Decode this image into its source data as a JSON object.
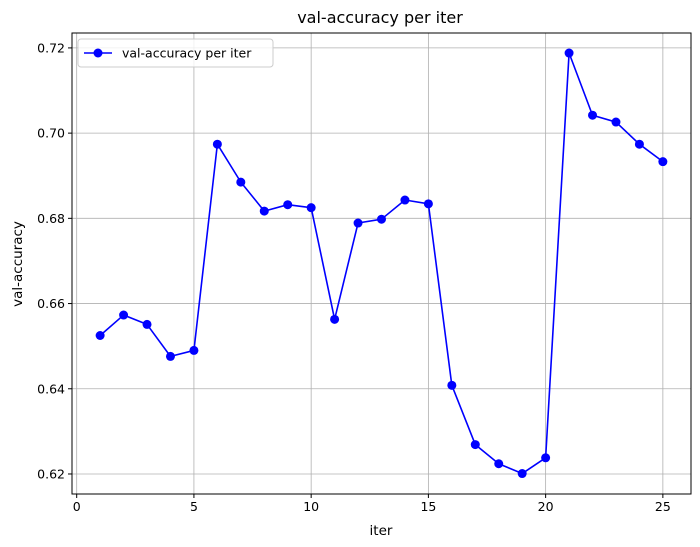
{
  "chart_data": {
    "type": "line",
    "title": "val-accuracy per iter",
    "xlabel": "iter",
    "ylabel": "val-accuracy",
    "xlim": [
      -0.2,
      26.2
    ],
    "ylim": [
      0.6153,
      0.7235
    ],
    "xticks": [
      0,
      5,
      10,
      15,
      20,
      25
    ],
    "yticks": [
      0.62,
      0.64,
      0.66,
      0.68,
      0.7,
      0.72
    ],
    "xtick_labels": [
      "0",
      "5",
      "10",
      "15",
      "20",
      "25"
    ],
    "ytick_labels": [
      "0.62",
      "0.64",
      "0.66",
      "0.68",
      "0.70",
      "0.72"
    ],
    "grid": true,
    "legend_position": "top-left",
    "series": [
      {
        "name": "val-accuracy per iter",
        "color": "#0000ff",
        "marker": "circle",
        "x": [
          1,
          2,
          3,
          4,
          5,
          6,
          7,
          8,
          9,
          10,
          11,
          12,
          13,
          14,
          15,
          16,
          17,
          18,
          19,
          20,
          21,
          22,
          23,
          24,
          25
        ],
        "y": [
          0.6525,
          0.6573,
          0.6551,
          0.6476,
          0.649,
          0.6974,
          0.6885,
          0.6817,
          0.6832,
          0.6825,
          0.6563,
          0.6789,
          0.6798,
          0.6843,
          0.6834,
          0.6408,
          0.6269,
          0.6224,
          0.6201,
          0.6238,
          0.7188,
          0.7042,
          0.7026,
          0.6974,
          0.6933
        ]
      }
    ]
  }
}
